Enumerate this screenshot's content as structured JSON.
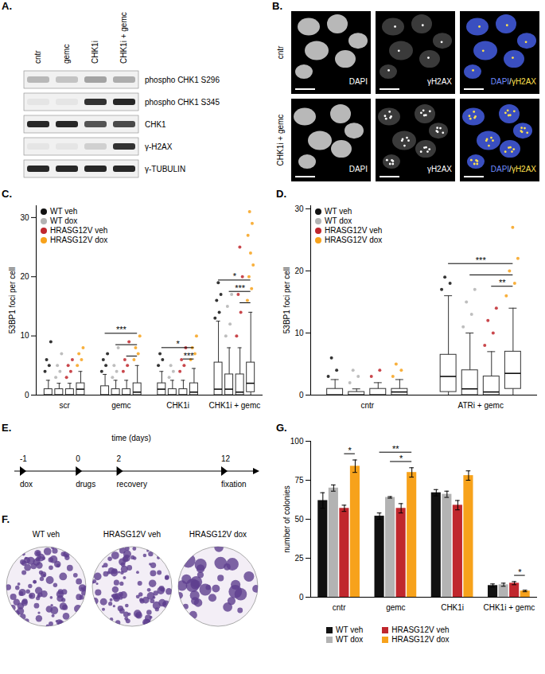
{
  "figure": {
    "A": {
      "label": "A.",
      "lanes": [
        "cntr",
        "gemc",
        "CHK1i",
        "CHK1i + gemc"
      ],
      "rows": [
        {
          "name": "phospho CHK1 S296",
          "band_intensity": [
            0.25,
            0.2,
            0.35,
            0.3
          ]
        },
        {
          "name": "phospho CHK1 S345",
          "band_intensity": [
            0.05,
            0.05,
            0.85,
            0.9
          ]
        },
        {
          "name": "CHK1",
          "band_intensity": [
            0.9,
            0.9,
            0.7,
            0.75
          ]
        },
        {
          "name": "γ-H2AX",
          "band_intensity": [
            0.05,
            0.05,
            0.15,
            0.85
          ]
        },
        {
          "name": "γ-TUBULIN",
          "band_intensity": [
            0.9,
            0.9,
            0.9,
            0.9
          ]
        }
      ]
    },
    "B": {
      "label": "B.",
      "rows": [
        "cntr",
        "CHK1i + gemc"
      ],
      "channels": [
        "DAPI",
        "γH2AX",
        "DAPI/γH2AX"
      ]
    },
    "E": {
      "label": "E.",
      "axis_label": "time (days)",
      "events": [
        {
          "day": -1,
          "label": "dox"
        },
        {
          "day": 0,
          "label": "drugs"
        },
        {
          "day": 2,
          "label": "recovery"
        },
        {
          "day": 12,
          "label": "fixation"
        }
      ]
    },
    "F": {
      "label": "F.",
      "plates": [
        "WT veh",
        "HRASG12V veh",
        "HRASG12V dox"
      ]
    }
  },
  "chart_data": [
    {
      "type": "box",
      "title": "C.",
      "ylabel": "53BP1 foci per cell",
      "categories": [
        "scr",
        "gemc",
        "CHK1i",
        "CHK1i + gemc"
      ],
      "ylim": [
        0,
        32
      ],
      "yticks": [
        0,
        10,
        20,
        30
      ],
      "legend": "top-left",
      "series": [
        {
          "name": "WT veh",
          "color": "#111111",
          "boxes": [
            {
              "q1": 0,
              "median": 0,
              "q3": 1,
              "whisker_low": 0,
              "whisker_high": 2.5,
              "points": [
                4,
                5,
                6,
                9
              ]
            },
            {
              "q1": 0,
              "median": 0,
              "q3": 1.5,
              "whisker_low": 0,
              "whisker_high": 3.5,
              "points": [
                4,
                5,
                6,
                7
              ]
            },
            {
              "q1": 0,
              "median": 1,
              "q3": 2,
              "whisker_low": 0,
              "whisker_high": 4,
              "points": [
                5,
                6,
                7
              ]
            },
            {
              "q1": 0,
              "median": 1,
              "q3": 5.5,
              "whisker_low": 0,
              "whisker_high": 12.5,
              "points": [
                13,
                14,
                16,
                17,
                19
              ]
            }
          ]
        },
        {
          "name": "WT dox",
          "color": "#b3b3b3",
          "boxes": [
            {
              "q1": 0,
              "median": 0,
              "q3": 1,
              "whisker_low": 0,
              "whisker_high": 2,
              "points": [
                3,
                4,
                5,
                7
              ]
            },
            {
              "q1": 0,
              "median": 0,
              "q3": 1,
              "whisker_low": 0,
              "whisker_high": 2.5,
              "points": [
                3,
                4,
                5,
                8
              ]
            },
            {
              "q1": 0,
              "median": 0,
              "q3": 1,
              "whisker_low": 0,
              "whisker_high": 2.5,
              "points": [
                3,
                4,
                5
              ]
            },
            {
              "q1": 0,
              "median": 1,
              "q3": 3.5,
              "whisker_low": 0,
              "whisker_high": 8,
              "points": [
                10,
                12,
                15,
                17
              ]
            }
          ]
        },
        {
          "name": "HRASG12V veh",
          "color": "#c0272d",
          "boxes": [
            {
              "q1": 0,
              "median": 0,
              "q3": 1,
              "whisker_low": 0,
              "whisker_high": 2,
              "points": [
                3,
                4,
                5,
                6
              ]
            },
            {
              "q1": 0,
              "median": 0,
              "q3": 1,
              "whisker_low": 0,
              "whisker_high": 2.5,
              "points": [
                4,
                5,
                6,
                9
              ]
            },
            {
              "q1": 0,
              "median": 0,
              "q3": 1,
              "whisker_low": 0,
              "whisker_high": 2.5,
              "points": [
                4,
                5,
                6,
                8
              ]
            },
            {
              "q1": 0,
              "median": 0.5,
              "q3": 3.5,
              "whisker_low": 0,
              "whisker_high": 8,
              "points": [
                10,
                14,
                17,
                20,
                25
              ]
            }
          ]
        },
        {
          "name": "HRASG12V dox",
          "color": "#f7a21b",
          "boxes": [
            {
              "q1": 0,
              "median": 1,
              "q3": 2,
              "whisker_low": 0,
              "whisker_high": 4,
              "points": [
                5,
                6,
                7,
                8
              ]
            },
            {
              "q1": 0,
              "median": 0.5,
              "q3": 2,
              "whisker_low": 0,
              "whisker_high": 5,
              "points": [
                6,
                7,
                8,
                10
              ]
            },
            {
              "q1": 0,
              "median": 0.5,
              "q3": 2,
              "whisker_low": 0,
              "whisker_high": 4.5,
              "points": [
                6,
                7,
                8,
                10
              ]
            },
            {
              "q1": 0.5,
              "median": 2,
              "q3": 5.5,
              "whisker_low": 0,
              "whisker_high": 14,
              "points": [
                16,
                18,
                20,
                22,
                24,
                27,
                29,
                31
              ]
            }
          ]
        }
      ],
      "significance": [
        {
          "category": "gemc",
          "from": "HRASG12V veh",
          "to": "HRASG12V dox",
          "label": null
        },
        {
          "category": "gemc",
          "from": "WT dox",
          "to": "HRASG12V dox",
          "label": null
        },
        {
          "category": "gemc",
          "from": "WT veh",
          "to": "HRASG12V dox",
          "label": "***"
        },
        {
          "category": "CHK1i",
          "from": "HRASG12V veh",
          "to": "HRASG12V dox",
          "label": "***"
        },
        {
          "category": "CHK1i",
          "from": "WT veh",
          "to": "HRASG12V dox",
          "label": "*"
        },
        {
          "category": "CHK1i + gemc",
          "from": "HRASG12V veh",
          "to": "HRASG12V dox",
          "label": null
        },
        {
          "category": "CHK1i + gemc",
          "from": "WT dox",
          "to": "HRASG12V dox",
          "label": "***"
        },
        {
          "category": "CHK1i + gemc",
          "from": "WT veh",
          "to": "HRASG12V dox",
          "label": "*"
        }
      ]
    },
    {
      "type": "box",
      "title": "D.",
      "ylabel": "53BP1 foci per cell",
      "categories": [
        "cntr",
        "ATRi + gemc"
      ],
      "ylim": [
        0,
        30.5
      ],
      "yticks": [
        0,
        10,
        20,
        30
      ],
      "legend": "top-left",
      "series": [
        {
          "name": "WT veh",
          "color": "#111111",
          "boxes": [
            {
              "q1": 0,
              "median": 0,
              "q3": 1,
              "whisker_low": 0,
              "whisker_high": 2.5,
              "points": [
                3,
                4,
                6
              ]
            },
            {
              "q1": 0.5,
              "median": 3,
              "q3": 6.5,
              "whisker_low": 0,
              "whisker_high": 16,
              "points": [
                17,
                18,
                19
              ]
            }
          ]
        },
        {
          "name": "WT dox",
          "color": "#b3b3b3",
          "boxes": [
            {
              "q1": 0,
              "median": 0,
              "q3": 0.5,
              "whisker_low": 0,
              "whisker_high": 1,
              "points": [
                2,
                3,
                4
              ]
            },
            {
              "q1": 0,
              "median": 1,
              "q3": 4,
              "whisker_low": 0,
              "whisker_high": 10,
              "points": [
                11,
                13,
                15,
                17
              ]
            }
          ]
        },
        {
          "name": "HRASG12V veh",
          "color": "#c0272d",
          "boxes": [
            {
              "q1": 0,
              "median": 0,
              "q3": 1,
              "whisker_low": 0,
              "whisker_high": 2,
              "points": [
                3,
                4
              ]
            },
            {
              "q1": 0,
              "median": 0.5,
              "q3": 3,
              "whisker_low": 0,
              "whisker_high": 7,
              "points": [
                8,
                10,
                12,
                14
              ]
            }
          ]
        },
        {
          "name": "HRASG12V dox",
          "color": "#f7a21b",
          "boxes": [
            {
              "q1": 0,
              "median": 0.5,
              "q3": 1,
              "whisker_low": 0,
              "whisker_high": 2.5,
              "points": [
                3,
                4,
                5
              ]
            },
            {
              "q1": 1,
              "median": 3.5,
              "q3": 7,
              "whisker_low": 0,
              "whisker_high": 14,
              "points": [
                16,
                18,
                20,
                22,
                27
              ]
            }
          ]
        }
      ],
      "significance": [
        {
          "category": "ATRi + gemc",
          "from": "HRASG12V veh",
          "to": "HRASG12V dox",
          "label": "**"
        },
        {
          "category": "ATRi + gemc",
          "from": "WT dox",
          "to": "HRASG12V dox",
          "label": null
        },
        {
          "category": "ATRi + gemc",
          "from": "WT veh",
          "to": "HRASG12V dox",
          "label": "***"
        }
      ]
    },
    {
      "type": "bar",
      "title": "G.",
      "ylabel": "number of colonies",
      "categories": [
        "cntr",
        "gemc",
        "CHK1i",
        "CHK1i + gemc"
      ],
      "ylim": [
        0,
        100
      ],
      "yticks": [
        0,
        25,
        50,
        75,
        100
      ],
      "legend": "bottom",
      "series": [
        {
          "name": "WT veh",
          "color": "#111111",
          "values": [
            62,
            52,
            67,
            7.5
          ],
          "errors": [
            5,
            2,
            2,
            1
          ]
        },
        {
          "name": "WT dox",
          "color": "#b3b3b3",
          "values": [
            70,
            64,
            66,
            8
          ],
          "errors": [
            2,
            0.5,
            2,
            1
          ]
        },
        {
          "name": "HRASG12V veh",
          "color": "#c0272d",
          "values": [
            57,
            57,
            59,
            9
          ],
          "errors": [
            2,
            3,
            3,
            1
          ]
        },
        {
          "name": "HRASG12V dox",
          "color": "#f7a21b",
          "values": [
            84,
            80,
            78,
            4
          ],
          "errors": [
            4,
            3,
            3,
            0.5
          ]
        }
      ],
      "significance": [
        {
          "category": "cntr",
          "from": "HRASG12V veh",
          "to": "HRASG12V dox",
          "label": "*"
        },
        {
          "category": "gemc",
          "from": "WT dox",
          "to": "HRASG12V dox",
          "label": "*"
        },
        {
          "category": "gemc",
          "from": "WT veh",
          "to": "HRASG12V dox",
          "label": "**"
        },
        {
          "category": "CHK1i + gemc",
          "from": "HRASG12V veh",
          "to": "HRASG12V dox",
          "label": "*"
        }
      ]
    }
  ]
}
